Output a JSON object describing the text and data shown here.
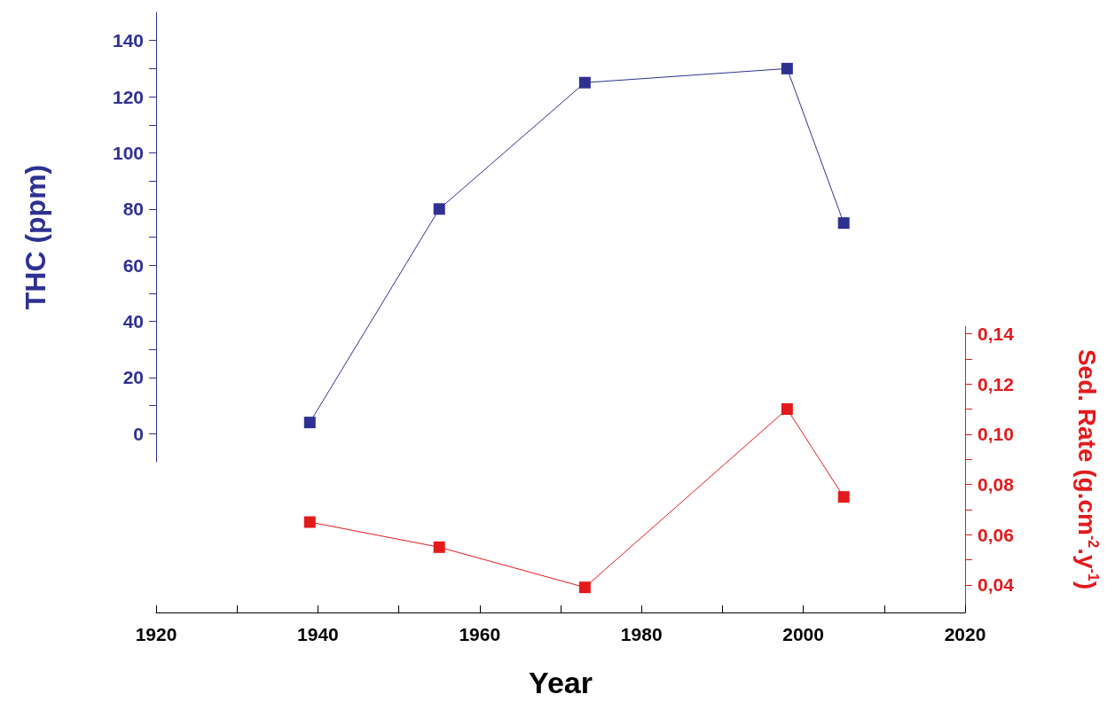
{
  "chart_data": [
    {
      "type": "line",
      "ylabel": "THC (ppm)",
      "x": [
        1939,
        1955,
        1973,
        1998,
        2005
      ],
      "series": [
        {
          "color": "#2e3192",
          "values": [
            4,
            80,
            125,
            130,
            75
          ]
        }
      ],
      "xlim": [
        1920,
        2020
      ],
      "ylim": [
        -10,
        150
      ],
      "yticks": [
        0,
        {
          "value": 10,
          "label": null
        },
        20,
        {
          "value": 30,
          "label": null
        },
        40,
        {
          "value": 50,
          "label": null
        },
        60,
        {
          "value": 70,
          "label": null
        },
        80,
        {
          "value": 90,
          "label": null
        },
        100,
        {
          "value": 110,
          "label": null
        },
        120,
        {
          "value": 130,
          "label": null
        },
        140
      ],
      "tick_labels": "y",
      "marker": "square",
      "line_style": "solid"
    },
    {
      "type": "line",
      "xlabel": "Year",
      "ylabel": "Sed. Rate (g.cm$^{-2}$.y$^{-1}$)",
      "x": [
        1939,
        1955,
        1973,
        1998,
        2005
      ],
      "series": [
        {
          "color": "#e31a1c",
          "values": [
            0.065,
            0.055,
            0.039,
            0.11,
            0.075
          ]
        }
      ],
      "xlim": [
        1920,
        2020
      ],
      "xticks": [
        1920,
        {
          "value": 1930,
          "label": null
        },
        1940,
        {
          "value": 1950,
          "label": null
        },
        1960,
        {
          "value": 1970,
          "label": null
        },
        1980,
        {
          "value": 1990,
          "label": null
        },
        2000,
        {
          "value": 2010,
          "label": null
        },
        2020
      ],
      "ylim": [
        0.029,
        0.143
      ],
      "yticks": [
        {
          "value": 0.04,
          "label": "0,04"
        },
        {
          "value": 0.05,
          "label": null
        },
        {
          "value": 0.06,
          "label": "0,06"
        },
        {
          "value": 0.07,
          "label": null
        },
        {
          "value": 0.08,
          "label": "0,08"
        },
        {
          "value": 0.09,
          "label": null
        },
        {
          "value": 0.1,
          "label": "0,10"
        },
        {
          "value": 0.11,
          "label": null
        },
        {
          "value": 0.12,
          "label": "0,12"
        },
        {
          "value": 0.13,
          "label": null
        },
        {
          "value": 0.14,
          "label": "0,14"
        }
      ],
      "marker": "square",
      "line_style": "solid"
    }
  ]
}
